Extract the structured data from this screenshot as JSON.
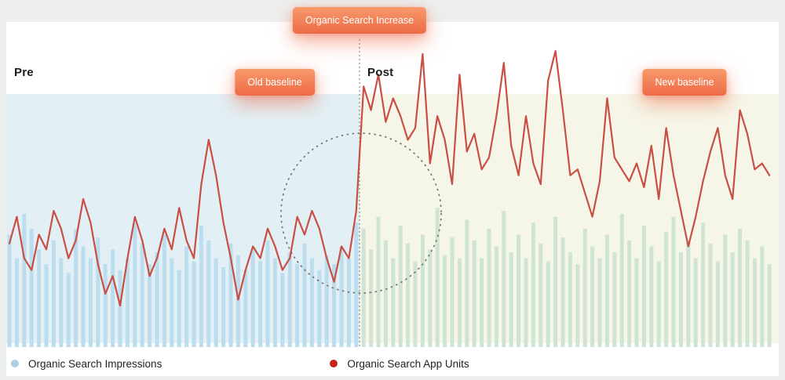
{
  "badges": {
    "top": "Organic Search Increase",
    "old_baseline": "Old baseline",
    "new_baseline": "New baseline"
  },
  "labels": {
    "pre": "Pre",
    "post": "Post"
  },
  "legend": [
    {
      "name": "Organic Search Impressions",
      "color": "#a9cfe3"
    },
    {
      "name": "Organic Search App Units",
      "color": "#c5221a"
    }
  ],
  "colors": {
    "pre_background": "#e2f0f6",
    "post_background": "#f6f6e8",
    "pre_bar": "#bcdded",
    "post_bar": "#d0e4d4",
    "line": "#c94f45",
    "badge_gradient_start": "#f79a6b",
    "badge_gradient_end": "#ee6a47",
    "divider": "#8a8a8a",
    "circle": "#6f6f6f"
  },
  "chart_data": {
    "type": "bar",
    "title": "Organic Search Increase",
    "xlabel": "",
    "ylabel": "",
    "ylim": [
      0,
      100
    ],
    "grid": false,
    "legend_position": "bottom-left",
    "split_index": 48,
    "pre_label": "Pre",
    "post_label": "Post",
    "annotations": [
      "Organic Search Increase",
      "Old baseline",
      "New baseline"
    ],
    "series": [
      {
        "name": "Organic Search Impressions",
        "type": "bar",
        "values": [
          38,
          30,
          45,
          40,
          33,
          28,
          36,
          30,
          25,
          40,
          34,
          30,
          37,
          28,
          33,
          26,
          30,
          42,
          35,
          28,
          32,
          38,
          30,
          26,
          34,
          29,
          41,
          36,
          30,
          27,
          35,
          31,
          26,
          33,
          29,
          36,
          30,
          25,
          32,
          28,
          35,
          30,
          26,
          31,
          28,
          34,
          30,
          42,
          40,
          33,
          44,
          36,
          30,
          41,
          35,
          29,
          38,
          33,
          47,
          31,
          37,
          30,
          43,
          36,
          30,
          40,
          34,
          46,
          32,
          38,
          30,
          42,
          35,
          29,
          44,
          37,
          32,
          28,
          40,
          34,
          30,
          38,
          32,
          45,
          36,
          30,
          41,
          34,
          29,
          39,
          44,
          32,
          36,
          30,
          42,
          35,
          29,
          38,
          32,
          40,
          36,
          30,
          34,
          28
        ]
      },
      {
        "name": "Organic Search App Units",
        "type": "line",
        "values": [
          35,
          44,
          30,
          26,
          38,
          33,
          46,
          40,
          30,
          36,
          50,
          42,
          28,
          18,
          24,
          14,
          30,
          44,
          36,
          24,
          30,
          40,
          33,
          47,
          36,
          30,
          55,
          70,
          58,
          42,
          30,
          16,
          26,
          34,
          30,
          40,
          34,
          26,
          30,
          44,
          38,
          46,
          40,
          30,
          22,
          34,
          30,
          46,
          88,
          80,
          92,
          76,
          84,
          78,
          70,
          74,
          99,
          62,
          78,
          70,
          55,
          92,
          66,
          72,
          60,
          64,
          78,
          96,
          68,
          58,
          78,
          62,
          55,
          90,
          100,
          80,
          58,
          60,
          52,
          44,
          56,
          84,
          64,
          60,
          56,
          62,
          54,
          68,
          50,
          74,
          58,
          46,
          34,
          44,
          56,
          66,
          74,
          58,
          50,
          80,
          72,
          60,
          62,
          58
        ]
      }
    ]
  }
}
